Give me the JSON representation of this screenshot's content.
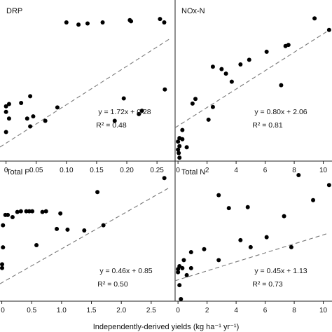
{
  "figure": {
    "xlabel_html": "Independently-derived yields (kg ha⁻¹ yr⁻¹)"
  },
  "chart_data": [
    {
      "type": "scatter",
      "panel_label": "DRP",
      "xlim": [
        -0.01,
        0.28
      ],
      "ylim": [
        0.2,
        0.92
      ],
      "xticks": [
        0,
        0.05,
        0.1,
        0.15,
        0.2,
        0.25
      ],
      "xtick_labels": [
        "0",
        "0.05",
        "0.10",
        "0.15",
        "0.20",
        "0.25"
      ],
      "points": [
        {
          "x": 0.1,
          "y": 0.82
        },
        {
          "x": 0.12,
          "y": 0.81
        },
        {
          "x": 0.135,
          "y": 0.815
        },
        {
          "x": 0.16,
          "y": 0.82
        },
        {
          "x": 0.205,
          "y": 0.83
        },
        {
          "x": 0.207,
          "y": 0.825
        },
        {
          "x": 0.255,
          "y": 0.835
        },
        {
          "x": 0.262,
          "y": 0.82
        },
        {
          "x": 0.04,
          "y": 0.49
        },
        {
          "x": 0.025,
          "y": 0.46
        },
        {
          "x": 0.005,
          "y": 0.455
        },
        {
          "x": 0.0,
          "y": 0.445
        },
        {
          "x": 0.0,
          "y": 0.42
        },
        {
          "x": 0.005,
          "y": 0.39
        },
        {
          "x": 0.045,
          "y": 0.4
        },
        {
          "x": 0.035,
          "y": 0.39
        },
        {
          "x": 0.065,
          "y": 0.38
        },
        {
          "x": 0.04,
          "y": 0.355
        },
        {
          "x": 0.0,
          "y": 0.33
        },
        {
          "x": 0.085,
          "y": 0.44
        },
        {
          "x": 0.18,
          "y": 0.38
        },
        {
          "x": 0.195,
          "y": 0.48
        },
        {
          "x": 0.22,
          "y": 0.41
        },
        {
          "x": 0.225,
          "y": 0.425
        },
        {
          "x": 0.263,
          "y": 0.52
        }
      ],
      "fit": {
        "slope": 1.72,
        "intercept": 0.28
      },
      "equation_text": "y = 1.72x + 0.28",
      "r2_text": "R² = 0.48"
    },
    {
      "type": "scatter",
      "panel_label": "NOx-N",
      "xlim": [
        -0.2,
        10.6
      ],
      "ylim": [
        -1,
        13
      ],
      "xticks": [
        0,
        2,
        4,
        6,
        8,
        10
      ],
      "xtick_labels": [
        "0",
        "2",
        "4",
        "6",
        "8",
        "10"
      ],
      "points": [
        {
          "x": 9.4,
          "y": 11.4
        },
        {
          "x": 10.4,
          "y": 10.4
        },
        {
          "x": 7.6,
          "y": 9.1
        },
        {
          "x": 7.4,
          "y": 9.0
        },
        {
          "x": 6.1,
          "y": 8.5
        },
        {
          "x": 4.9,
          "y": 7.8
        },
        {
          "x": 4.3,
          "y": 7.4
        },
        {
          "x": 2.4,
          "y": 7.2
        },
        {
          "x": 3.0,
          "y": 7.0
        },
        {
          "x": 3.3,
          "y": 6.6
        },
        {
          "x": 3.7,
          "y": 5.9
        },
        {
          "x": 7.1,
          "y": 5.6
        },
        {
          "x": 1.2,
          "y": 4.4
        },
        {
          "x": 1.0,
          "y": 4.0
        },
        {
          "x": 2.4,
          "y": 3.7
        },
        {
          "x": 2.1,
          "y": 2.6
        },
        {
          "x": 0.3,
          "y": 1.7
        },
        {
          "x": 0.1,
          "y": 1.0
        },
        {
          "x": 0.3,
          "y": 0.9
        },
        {
          "x": 0.6,
          "y": 0.2
        },
        {
          "x": 0.0,
          "y": 0.7
        },
        {
          "x": 0.1,
          "y": 0.3
        },
        {
          "x": 0.0,
          "y": 0.0
        },
        {
          "x": 0.05,
          "y": -0.3
        },
        {
          "x": 0.1,
          "y": -0.7
        }
      ],
      "fit": {
        "slope": 0.8,
        "intercept": 2.06
      },
      "equation_text": "y = 0.80x + 2.06",
      "r2_text": "R² = 0.81"
    },
    {
      "type": "scatter",
      "panel_label": "Total P",
      "xlim": [
        -0.03,
        2.9
      ],
      "ylim": [
        0.6,
        2.5
      ],
      "xticks": [
        0,
        0.5,
        1.0,
        1.5,
        2.0,
        2.5
      ],
      "xtick_labels": [
        "0",
        "0.5",
        "1.0",
        "1.5",
        "2.0",
        "2.5"
      ],
      "points": [
        {
          "x": 2.72,
          "y": 2.27
        },
        {
          "x": 1.6,
          "y": 2.08
        },
        {
          "x": 0.26,
          "y": 1.81
        },
        {
          "x": 0.32,
          "y": 1.82
        },
        {
          "x": 0.41,
          "y": 1.82
        },
        {
          "x": 0.46,
          "y": 1.82
        },
        {
          "x": 0.51,
          "y": 1.82
        },
        {
          "x": 0.68,
          "y": 1.81
        },
        {
          "x": 0.74,
          "y": 1.82
        },
        {
          "x": 0.98,
          "y": 1.79
        },
        {
          "x": 0.1,
          "y": 1.77
        },
        {
          "x": 0.06,
          "y": 1.77
        },
        {
          "x": 0.18,
          "y": 1.74
        },
        {
          "x": 0.02,
          "y": 1.63
        },
        {
          "x": 0.92,
          "y": 1.58
        },
        {
          "x": 1.1,
          "y": 1.57
        },
        {
          "x": 1.7,
          "y": 1.63
        },
        {
          "x": 1.38,
          "y": 1.56
        },
        {
          "x": 0.02,
          "y": 1.33
        },
        {
          "x": 0.58,
          "y": 1.36
        },
        {
          "x": 0.0,
          "y": 1.1
        },
        {
          "x": 0.0,
          "y": 1.05
        }
      ],
      "fit": {
        "slope": 0.46,
        "intercept": 0.85
      },
      "equation_text": "y = 0.46x + 0.85",
      "r2_text": "R² = 0.50"
    },
    {
      "type": "scatter",
      "panel_label": "Total N",
      "xlim": [
        -0.2,
        10.6
      ],
      "ylim": [
        -1,
        13
      ],
      "xticks": [
        0,
        2,
        4,
        6,
        8,
        10
      ],
      "xtick_labels": [
        "0",
        "2",
        "4",
        "6",
        "8",
        "10"
      ],
      "points": [
        {
          "x": 8.3,
          "y": 11.6
        },
        {
          "x": 10.4,
          "y": 10.6
        },
        {
          "x": 2.8,
          "y": 9.6
        },
        {
          "x": 9.3,
          "y": 9.1
        },
        {
          "x": 4.8,
          "y": 8.4
        },
        {
          "x": 3.5,
          "y": 8.3
        },
        {
          "x": 7.3,
          "y": 7.5
        },
        {
          "x": 6.1,
          "y": 5.4
        },
        {
          "x": 4.3,
          "y": 5.1
        },
        {
          "x": 5.0,
          "y": 4.4
        },
        {
          "x": 7.8,
          "y": 4.4
        },
        {
          "x": 1.8,
          "y": 4.2
        },
        {
          "x": 0.9,
          "y": 3.9
        },
        {
          "x": 2.8,
          "y": 3.1
        },
        {
          "x": 0.4,
          "y": 3.1
        },
        {
          "x": 0.1,
          "y": 2.5
        },
        {
          "x": 0.3,
          "y": 2.3
        },
        {
          "x": 0.9,
          "y": 2.3
        },
        {
          "x": 0.0,
          "y": 2.2
        },
        {
          "x": 0.0,
          "y": 1.9
        },
        {
          "x": 0.6,
          "y": 1.6
        },
        {
          "x": 0.1,
          "y": 0.6
        },
        {
          "x": 0.2,
          "y": -0.8
        }
      ],
      "fit": {
        "slope": 0.45,
        "intercept": 1.13
      },
      "equation_text": "y = 0.45x + 1.13",
      "r2_text": "R² = 0.73"
    }
  ]
}
